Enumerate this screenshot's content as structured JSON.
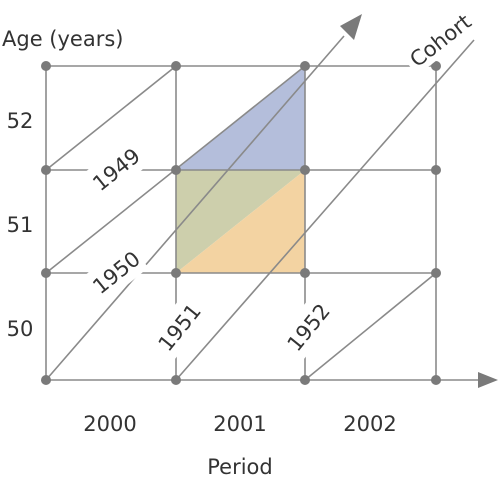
{
  "diagram": {
    "y_axis_title": "Age (years)",
    "x_axis_title": "Period",
    "diagonal_axis_title": "Cohort",
    "age_labels": [
      "52",
      "51",
      "50"
    ],
    "period_labels": [
      "2000",
      "2001",
      "2002"
    ],
    "cohort_labels": [
      "1949",
      "1950",
      "1951",
      "1952"
    ],
    "colors": {
      "line": "#8a8a8a",
      "dot": "#7a7a7a",
      "blue_region": "#b4bedb",
      "green_region": "#cdcfac",
      "orange_region": "#f3d3a2",
      "text": "#333333"
    }
  }
}
